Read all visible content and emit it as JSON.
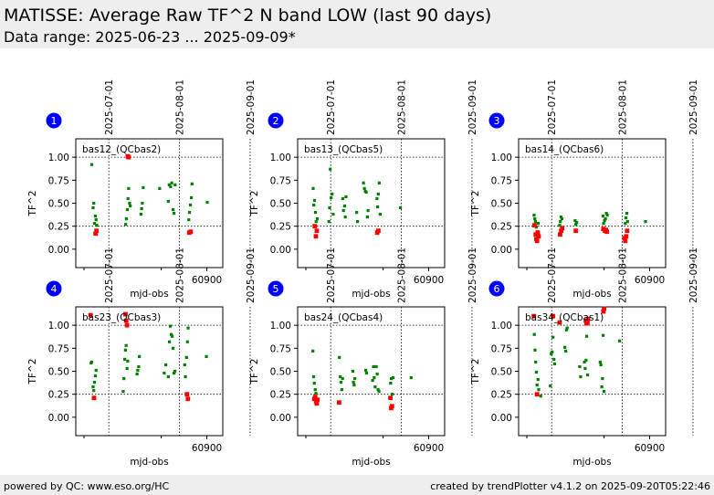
{
  "header": {
    "title": "MATISSE: Average Raw TF^2 N band LOW (last 90 days)",
    "subtitle": "Data range: 2025-06-23 ... 2025-09-09*"
  },
  "footer": {
    "left": "powered by QC: www.eso.org/HC",
    "right": "created by trendPlotter v4.1.2 on 2025-09-20T05:22:46"
  },
  "colors": {
    "ok": "#008000",
    "outlier": "#ff0000",
    "badge": "#0000ff",
    "background": "#eeeeee"
  },
  "chart_data": [
    {
      "type": "scatter",
      "panel": "1",
      "label": "bas12_(QCbas2)",
      "xlabel": "mjd-obs",
      "ylabel": "TF^2",
      "xticks": [
        60900
      ],
      "ylim": [
        -0.2,
        1.2
      ],
      "yticks": [
        "0.00",
        "0.25",
        "0.50",
        "0.75",
        "1.00"
      ],
      "date_ticks": [
        "2025-07-01",
        "2025-08-01",
        "2025-09-01"
      ],
      "grid": "date lines and y=0.25, y=1.0 dotted",
      "points_ok": [
        [
          60849.5,
          0.92
        ],
        [
          60850.1,
          0.45
        ],
        [
          60850.4,
          0.5
        ],
        [
          60850.7,
          0.28
        ],
        [
          60851.1,
          0.36
        ],
        [
          60851.4,
          0.32
        ],
        [
          60851.7,
          0.26
        ],
        [
          60864.4,
          0.27
        ],
        [
          60864.7,
          0.33
        ],
        [
          60865.1,
          0.43
        ],
        [
          60865.4,
          0.55
        ],
        [
          60865.7,
          0.66
        ],
        [
          60866.1,
          0.5
        ],
        [
          60866.4,
          0.47
        ],
        [
          60871.1,
          0.38
        ],
        [
          60871.4,
          0.44
        ],
        [
          60871.7,
          0.5
        ],
        [
          60872.1,
          0.67
        ],
        [
          60879.3,
          0.66
        ],
        [
          60883.1,
          0.52
        ],
        [
          60883.5,
          0.7
        ],
        [
          60884.1,
          0.68
        ],
        [
          60884.6,
          0.72
        ],
        [
          60885.2,
          0.43
        ],
        [
          60885.6,
          0.39
        ],
        [
          60886.1,
          0.7
        ],
        [
          60892.1,
          0.32
        ],
        [
          60892.4,
          0.4
        ],
        [
          60892.8,
          0.48
        ],
        [
          60893.2,
          0.56
        ],
        [
          60893.5,
          0.71
        ],
        [
          60900.2,
          0.51
        ]
      ],
      "points_out": [
        [
          60851.2,
          0.17
        ],
        [
          60851.6,
          0.2
        ],
        [
          60865.3,
          1.01
        ],
        [
          60865.7,
          1.0
        ],
        [
          60892.3,
          0.18
        ],
        [
          60892.9,
          0.19
        ]
      ]
    },
    {
      "type": "scatter",
      "panel": "2",
      "label": "bas13_(QCbas5)",
      "xlabel": "mjd-obs",
      "ylabel": "TF^2",
      "xticks": [
        60900
      ],
      "ylim": [
        -0.2,
        1.2
      ],
      "yticks": [
        "0.00",
        "0.25",
        "0.50",
        "0.75",
        "1.00"
      ],
      "date_ticks": [
        "2025-07-01",
        "2025-08-01",
        "2025-09-01"
      ],
      "grid": "date lines and y=0.25, y=1.0 dotted",
      "points_ok": [
        [
          60849.3,
          0.66
        ],
        [
          60849.6,
          0.48
        ],
        [
          60849.9,
          0.53
        ],
        [
          60850.3,
          0.4
        ],
        [
          60850.6,
          0.3
        ],
        [
          60851.1,
          0.33
        ],
        [
          60856.2,
          0.3
        ],
        [
          60856.5,
          0.45
        ],
        [
          60856.8,
          0.87
        ],
        [
          60857.2,
          0.56
        ],
        [
          60857.6,
          0.6
        ],
        [
          60858.1,
          0.38
        ],
        [
          60862.3,
          0.55
        ],
        [
          60862.6,
          0.42
        ],
        [
          60863.1,
          0.47
        ],
        [
          60863.4,
          0.35
        ],
        [
          60863.7,
          0.57
        ],
        [
          60868.4,
          0.4
        ],
        [
          60868.8,
          0.3
        ],
        [
          60871.4,
          0.72
        ],
        [
          60871.8,
          0.66
        ],
        [
          60872.2,
          0.63
        ],
        [
          60872.6,
          0.62
        ],
        [
          60873.1,
          0.35
        ],
        [
          60873.4,
          0.42
        ],
        [
          60877.3,
          0.55
        ],
        [
          60877.6,
          0.46
        ],
        [
          60877.9,
          0.6
        ],
        [
          60878.3,
          0.72
        ],
        [
          60878.7,
          0.38
        ],
        [
          60887.6,
          0.45
        ]
      ],
      "points_out": [
        [
          60850.0,
          0.25
        ],
        [
          60850.5,
          0.14
        ],
        [
          60850.9,
          0.2
        ],
        [
          60877.4,
          0.18
        ],
        [
          60877.9,
          0.2
        ]
      ]
    },
    {
      "type": "scatter",
      "panel": "3",
      "label": "bas14_(QCbas6)",
      "xlabel": "mjd-obs",
      "ylabel": "TF^2",
      "xticks": [
        60900
      ],
      "ylim": [
        -0.2,
        1.2
      ],
      "yticks": [
        "0.00",
        "0.25",
        "0.50",
        "0.75",
        "1.00"
      ],
      "date_ticks": [
        "2025-07-01",
        "2025-08-01",
        "2025-09-01"
      ],
      "grid": "date lines and y=0.25, y=1.0 dotted",
      "points_ok": [
        [
          60849.3,
          0.37
        ],
        [
          60849.6,
          0.33
        ],
        [
          60849.9,
          0.3
        ],
        [
          60850.3,
          0.24
        ],
        [
          60850.7,
          0.19
        ],
        [
          60851.1,
          0.28
        ],
        [
          60860.5,
          0.26
        ],
        [
          60860.8,
          0.3
        ],
        [
          60861.1,
          0.35
        ],
        [
          60861.5,
          0.33
        ],
        [
          60861.8,
          0.22
        ],
        [
          60867.3,
          0.31
        ],
        [
          60867.6,
          0.27
        ],
        [
          60868.0,
          0.29
        ],
        [
          60879.5,
          0.36
        ],
        [
          60879.8,
          0.28
        ],
        [
          60880.2,
          0.31
        ],
        [
          60880.6,
          0.33
        ],
        [
          60881.0,
          0.39
        ],
        [
          60881.4,
          0.37
        ],
        [
          60889.3,
          0.28
        ],
        [
          60889.6,
          0.34
        ],
        [
          60890.0,
          0.39
        ],
        [
          60890.3,
          0.3
        ],
        [
          60898.2,
          0.3
        ]
      ],
      "points_out": [
        [
          60849.5,
          0.26
        ],
        [
          60850.0,
          0.16
        ],
        [
          60850.3,
          0.11
        ],
        [
          60850.6,
          0.09
        ],
        [
          60850.9,
          0.18
        ],
        [
          60851.3,
          0.14
        ],
        [
          60860.7,
          0.16
        ],
        [
          60861.2,
          0.2
        ],
        [
          60861.6,
          0.23
        ],
        [
          60867.6,
          0.2
        ],
        [
          60879.7,
          0.22
        ],
        [
          60880.4,
          0.2
        ],
        [
          60880.8,
          0.21
        ],
        [
          60881.2,
          0.19
        ],
        [
          60888.9,
          0.12
        ],
        [
          60889.3,
          0.09
        ],
        [
          60889.7,
          0.14
        ],
        [
          60890.1,
          0.2
        ]
      ]
    },
    {
      "type": "scatter",
      "panel": "4",
      "label": "bas23_(QCbas3)",
      "xlabel": "mjd-obs",
      "ylabel": "TF^2",
      "xticks": [
        60900
      ],
      "ylim": [
        -0.2,
        1.2
      ],
      "yticks": [
        "0.00",
        "0.25",
        "0.50",
        "0.75",
        "1.00"
      ],
      "date_ticks": [
        "2025-07-01",
        "2025-08-01",
        "2025-09-01"
      ],
      "grid": "date lines and y=0.25, y=1.0 dotted",
      "points_ok": [
        [
          60849.2,
          0.59
        ],
        [
          60849.5,
          0.6
        ],
        [
          60850.1,
          0.33
        ],
        [
          60850.4,
          0.29
        ],
        [
          60850.7,
          0.38
        ],
        [
          60851.1,
          0.45
        ],
        [
          60851.4,
          0.51
        ],
        [
          60863.3,
          0.28
        ],
        [
          60863.6,
          0.42
        ],
        [
          60864.0,
          0.63
        ],
        [
          60864.3,
          0.73
        ],
        [
          60864.6,
          0.78
        ],
        [
          60865.0,
          0.53
        ],
        [
          60865.3,
          0.61
        ],
        [
          60869.4,
          0.47
        ],
        [
          60869.7,
          0.51
        ],
        [
          60870.1,
          0.55
        ],
        [
          60870.4,
          0.66
        ],
        [
          60881.3,
          0.48
        ],
        [
          60882.0,
          0.57
        ],
        [
          60883.1,
          0.44
        ],
        [
          60883.6,
          0.82
        ],
        [
          60884.0,
          0.99
        ],
        [
          60884.4,
          0.9
        ],
        [
          60884.8,
          0.88
        ],
        [
          60885.2,
          0.75
        ],
        [
          60885.6,
          0.48
        ],
        [
          60886.0,
          0.5
        ],
        [
          60890.3,
          0.57
        ],
        [
          60890.6,
          0.44
        ],
        [
          60891.1,
          0.65
        ],
        [
          60891.5,
          0.82
        ],
        [
          60891.8,
          0.97
        ],
        [
          60899.8,
          0.66
        ]
      ],
      "points_out": [
        [
          60849.0,
          1.11
        ],
        [
          60850.5,
          0.21
        ],
        [
          60864.3,
          1.12
        ],
        [
          60864.6,
          1.05
        ],
        [
          60865.0,
          1.0
        ],
        [
          60891.3,
          0.25
        ],
        [
          60891.7,
          0.2
        ]
      ]
    },
    {
      "type": "scatter",
      "panel": "5",
      "label": "bas24_(QCbas4)",
      "xlabel": "mjd-obs",
      "ylabel": "TF^2",
      "xticks": [
        60900
      ],
      "ylim": [
        -0.2,
        1.2
      ],
      "yticks": [
        "0.00",
        "0.25",
        "0.50",
        "0.75",
        "1.00"
      ],
      "date_ticks": [
        "2025-07-01",
        "2025-08-01",
        "2025-09-01"
      ],
      "grid": "date lines and y=0.25, y=1.0 dotted",
      "points_ok": [
        [
          60849.2,
          0.72
        ],
        [
          60849.5,
          0.44
        ],
        [
          60849.8,
          0.37
        ],
        [
          60850.2,
          0.3
        ],
        [
          60850.5,
          0.26
        ],
        [
          60851.1,
          0.19
        ],
        [
          60860.8,
          0.65
        ],
        [
          60861.2,
          0.44
        ],
        [
          60861.5,
          0.38
        ],
        [
          60861.9,
          0.3
        ],
        [
          60862.2,
          0.42
        ],
        [
          60866.7,
          0.5
        ],
        [
          60867.0,
          0.38
        ],
        [
          60867.3,
          0.35
        ],
        [
          60867.6,
          0.42
        ],
        [
          60872.4,
          0.51
        ],
        [
          60872.7,
          0.48
        ],
        [
          60875.4,
          0.4
        ],
        [
          60875.8,
          0.55
        ],
        [
          60876.1,
          0.43
        ],
        [
          60876.5,
          0.33
        ],
        [
          60877.0,
          0.55
        ],
        [
          60877.4,
          0.47
        ],
        [
          60877.8,
          0.3
        ],
        [
          60878.2,
          0.28
        ],
        [
          60883.3,
          0.37
        ],
        [
          60883.6,
          0.42
        ],
        [
          60884.0,
          0.25
        ],
        [
          60884.4,
          0.43
        ],
        [
          60892.3,
          0.43
        ]
      ],
      "points_out": [
        [
          60849.8,
          0.2
        ],
        [
          60850.2,
          0.22
        ],
        [
          60850.6,
          0.17
        ],
        [
          60850.9,
          0.15
        ],
        [
          60851.2,
          0.19
        ],
        [
          60860.7,
          0.16
        ],
        [
          60883.2,
          0.21
        ],
        [
          60883.5,
          0.1
        ],
        [
          60883.9,
          0.12
        ]
      ]
    },
    {
      "type": "scatter",
      "panel": "6",
      "label": "bas34_(QCbas1)",
      "xlabel": "mjd-obs",
      "ylabel": "TF^2",
      "xticks": [
        60900
      ],
      "ylim": [
        -0.2,
        1.2
      ],
      "yticks": [
        "0.00",
        "0.25",
        "0.50",
        "0.75",
        "1.00"
      ],
      "date_ticks": [
        "2025-07-01",
        "2025-08-01",
        "2025-09-01"
      ],
      "grid": "date lines and y=0.25, y=1.0 dotted",
      "points_ok": [
        [
          60849.4,
          0.9
        ],
        [
          60849.7,
          0.73
        ],
        [
          60850.0,
          0.6
        ],
        [
          60850.3,
          0.49
        ],
        [
          60850.6,
          0.35
        ],
        [
          60851.0,
          0.41
        ],
        [
          60851.3,
          0.3
        ],
        [
          60852.2,
          0.23
        ],
        [
          60856.4,
          0.34
        ],
        [
          60856.8,
          0.69
        ],
        [
          60857.2,
          0.71
        ],
        [
          60857.6,
          0.87
        ],
        [
          60858.0,
          0.63
        ],
        [
          60858.3,
          0.58
        ],
        [
          60862.8,
          0.76
        ],
        [
          60863.2,
          0.72
        ],
        [
          60863.5,
          0.95
        ],
        [
          60863.8,
          0.97
        ],
        [
          60869.3,
          0.55
        ],
        [
          60869.7,
          0.44
        ],
        [
          60871.4,
          0.6
        ],
        [
          60871.7,
          0.53
        ],
        [
          60872.1,
          0.62
        ],
        [
          60872.4,
          0.88
        ],
        [
          60872.8,
          0.46
        ],
        [
          60878.3,
          0.6
        ],
        [
          60878.6,
          0.57
        ],
        [
          60879.0,
          0.33
        ],
        [
          60879.3,
          0.42
        ],
        [
          60879.6,
          0.89
        ],
        [
          60880.0,
          0.28
        ],
        [
          60886.8,
          0.83
        ]
      ],
      "points_out": [
        [
          60849.2,
          1.1
        ],
        [
          60850.6,
          0.25
        ],
        [
          60857.6,
          1.1
        ],
        [
          60860.5,
          1.03
        ],
        [
          60872.0,
          1.05
        ],
        [
          60872.3,
          1.02
        ],
        [
          60872.7,
          1.03
        ],
        [
          60873.0,
          1.07
        ],
        [
          60879.7,
          1.15
        ],
        [
          60880.0,
          1.18
        ]
      ]
    }
  ]
}
